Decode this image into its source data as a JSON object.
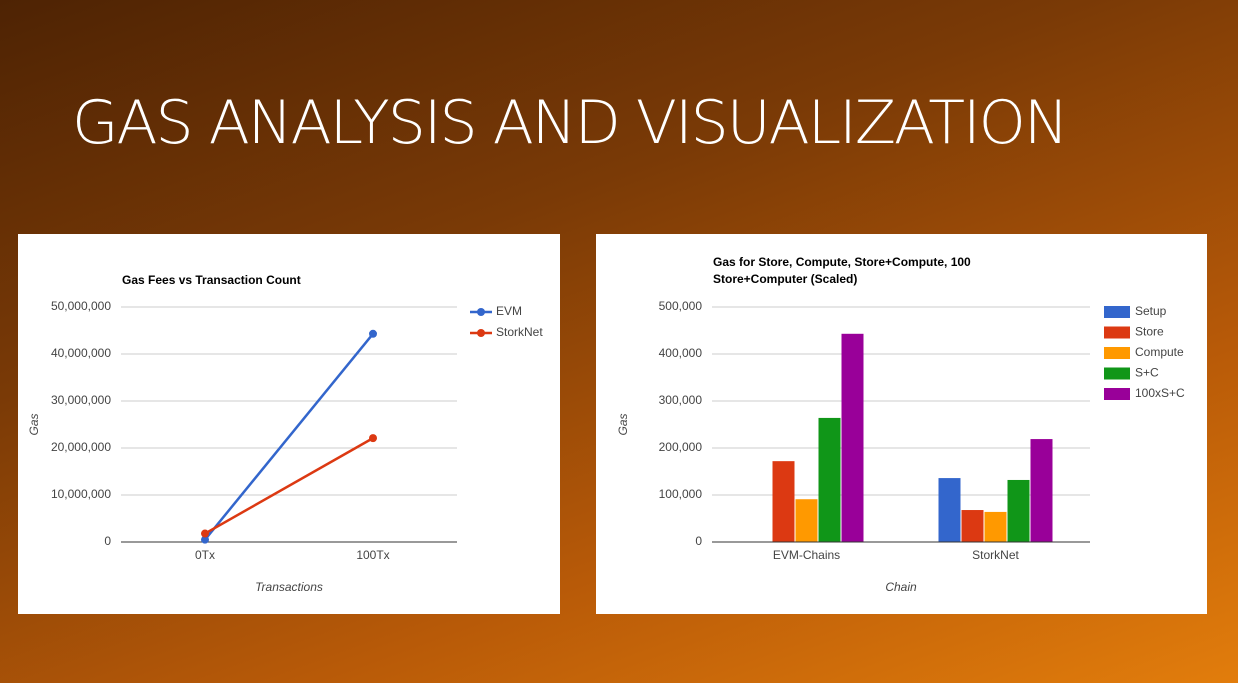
{
  "slide_title": "GAS ANALYSIS AND VISUALIZATION",
  "chart_data": [
    {
      "type": "line",
      "title": "Gas Fees vs Transaction Count",
      "x_label": "Transactions",
      "y_label": "Gas",
      "categories": [
        "0Tx",
        "100Tx"
      ],
      "series": [
        {
          "name": "EVM",
          "color": "#3366cc",
          "values": [
            500000,
            44300000
          ]
        },
        {
          "name": "StorkNet",
          "color": "#dc3912",
          "values": [
            1800000,
            22100000
          ]
        }
      ],
      "ylim": [
        0,
        50000000
      ],
      "yticks": [
        {
          "value": 0,
          "label": "0"
        },
        {
          "value": 10000000,
          "label": "10,000,000"
        },
        {
          "value": 20000000,
          "label": "20,000,000"
        },
        {
          "value": 30000000,
          "label": "30,000,000"
        },
        {
          "value": 40000000,
          "label": "40,000,000"
        },
        {
          "value": 50000000,
          "label": "50,000,000"
        }
      ],
      "grid": true,
      "legend": "right"
    },
    {
      "type": "bar",
      "title": "Gas for Store, Compute, Store+Compute, 100 Store+Computer (Scaled)",
      "x_label": "Chain",
      "y_label": "Gas",
      "categories": [
        "EVM-Chains",
        "StorkNet"
      ],
      "series": [
        {
          "name": "Setup",
          "color": "#3366cc",
          "values": [
            0,
            136000
          ]
        },
        {
          "name": "Store",
          "color": "#dc3912",
          "values": [
            172000,
            68000
          ]
        },
        {
          "name": "Compute",
          "color": "#ff9900",
          "values": [
            91000,
            64000
          ]
        },
        {
          "name": "S+C",
          "color": "#109618",
          "values": [
            264000,
            132000
          ]
        },
        {
          "name": "100xS+C",
          "color": "#990099",
          "values": [
            443000,
            219000
          ]
        }
      ],
      "ylim": [
        0,
        500000
      ],
      "yticks": [
        {
          "value": 0,
          "label": "0"
        },
        {
          "value": 100000,
          "label": "100,000"
        },
        {
          "value": 200000,
          "label": "200,000"
        },
        {
          "value": 300000,
          "label": "300,000"
        },
        {
          "value": 400000,
          "label": "400,000"
        },
        {
          "value": 500000,
          "label": "500,000"
        }
      ],
      "grid": true,
      "legend": "right"
    }
  ]
}
